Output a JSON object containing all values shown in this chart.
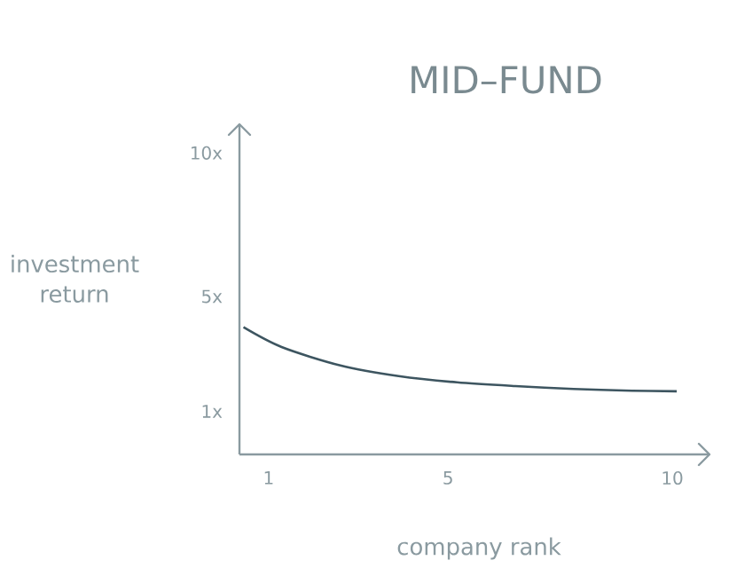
{
  "chart_data": {
    "type": "line",
    "title": "MID–FUND",
    "xlabel": "company rank",
    "ylabel": "investment return",
    "x": [
      0.44,
      1.29,
      2.6,
      3.9,
      5.2,
      6.5,
      7.8,
      9.1,
      10.1
    ],
    "series": [
      {
        "color": "#3d5560",
        "values": [
          3.93,
          3.24,
          2.6,
          2.23,
          2.01,
          1.88,
          1.78,
          1.72,
          1.7
        ]
      }
    ],
    "xlim": [
      0.35,
      10.83
    ],
    "ylim": [
      -0.5,
      11
    ],
    "xticks": [
      1,
      5,
      10
    ],
    "yticks": [
      {
        "value": 1,
        "label": "1x"
      },
      {
        "value": 5,
        "label": "5x"
      },
      {
        "value": 10,
        "label": "10x"
      }
    ],
    "grid": false,
    "marker": "none",
    "line_style": "solid"
  }
}
